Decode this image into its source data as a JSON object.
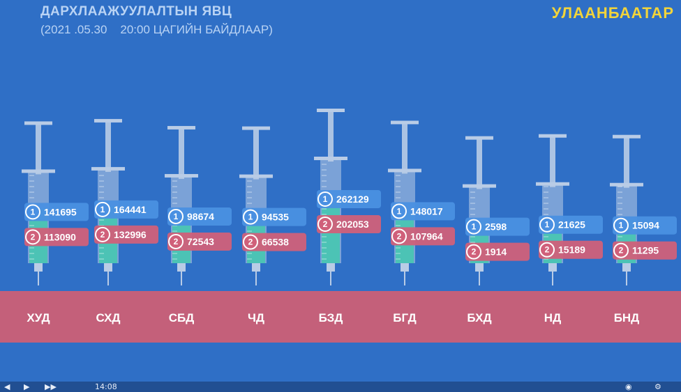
{
  "header": {
    "title": "ДАРХЛААЖУУЛАЛТЫН ЯВЦ",
    "subtitle": "(2021 .05.30    20:00 ЦАГИЙН БАЙДЛААР)",
    "city": "УЛААНБААТАР"
  },
  "badges": {
    "dose1": "1",
    "dose2": "2"
  },
  "player": {
    "time": "14:08"
  },
  "colors": {
    "background": "#2f6fc6",
    "band": "#c4607a",
    "dose1_badge": "#4a90e2",
    "dose2_badge": "#d0607a",
    "syringe_fill": "#4cc3b5",
    "syringe_body": "#b9cce6",
    "city": "#f2d43a"
  },
  "chart_data": {
    "type": "bar",
    "representation": "syringe",
    "categories": [
      "ХУД",
      "СХД",
      "СБД",
      "ЧД",
      "БЗД",
      "БГД",
      "БХД",
      "НД",
      "БНД"
    ],
    "series": [
      {
        "name": "1",
        "values": [
          141695,
          164441,
          98674,
          94535,
          262129,
          148017,
          2598,
          21625,
          15094
        ]
      },
      {
        "name": "2",
        "values": [
          113090,
          132996,
          72543,
          66538,
          202053,
          107964,
          1914,
          15189,
          11295
        ]
      }
    ]
  }
}
